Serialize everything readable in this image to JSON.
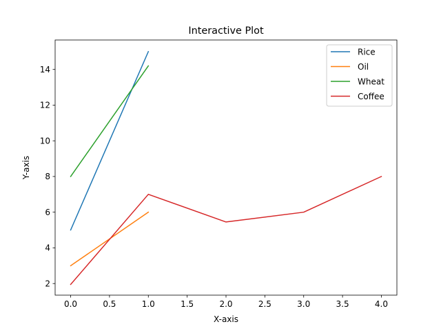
{
  "chart_data": {
    "type": "line",
    "title": "Interactive Plot",
    "xlabel": "X-axis",
    "ylabel": "Y-axis",
    "xlim": [
      -0.2,
      4.2
    ],
    "ylim": [
      1.35,
      15.65
    ],
    "xticks": [
      0.0,
      0.5,
      1.0,
      1.5,
      2.0,
      2.5,
      3.0,
      3.5,
      4.0
    ],
    "xtick_labels": [
      "0.0",
      "0.5",
      "1.0",
      "1.5",
      "2.0",
      "2.5",
      "3.0",
      "3.5",
      "4.0"
    ],
    "yticks": [
      2,
      4,
      6,
      8,
      10,
      12,
      14
    ],
    "ytick_labels": [
      "2",
      "4",
      "6",
      "8",
      "10",
      "12",
      "14"
    ],
    "grid": false,
    "legend_position": "top-right",
    "series": [
      {
        "name": "Rice",
        "color": "#1f77b4",
        "x": [
          0,
          1
        ],
        "y": [
          5,
          15
        ]
      },
      {
        "name": "Oil",
        "color": "#ff7f0e",
        "x": [
          0,
          1
        ],
        "y": [
          3,
          6
        ]
      },
      {
        "name": "Wheat",
        "color": "#2ca02c",
        "x": [
          0,
          1
        ],
        "y": [
          8,
          14.2
        ]
      },
      {
        "name": "Coffee",
        "color": "#d62728",
        "x": [
          0,
          1,
          2,
          3,
          4
        ],
        "y": [
          1.95,
          7,
          5.45,
          6,
          8
        ]
      }
    ]
  }
}
